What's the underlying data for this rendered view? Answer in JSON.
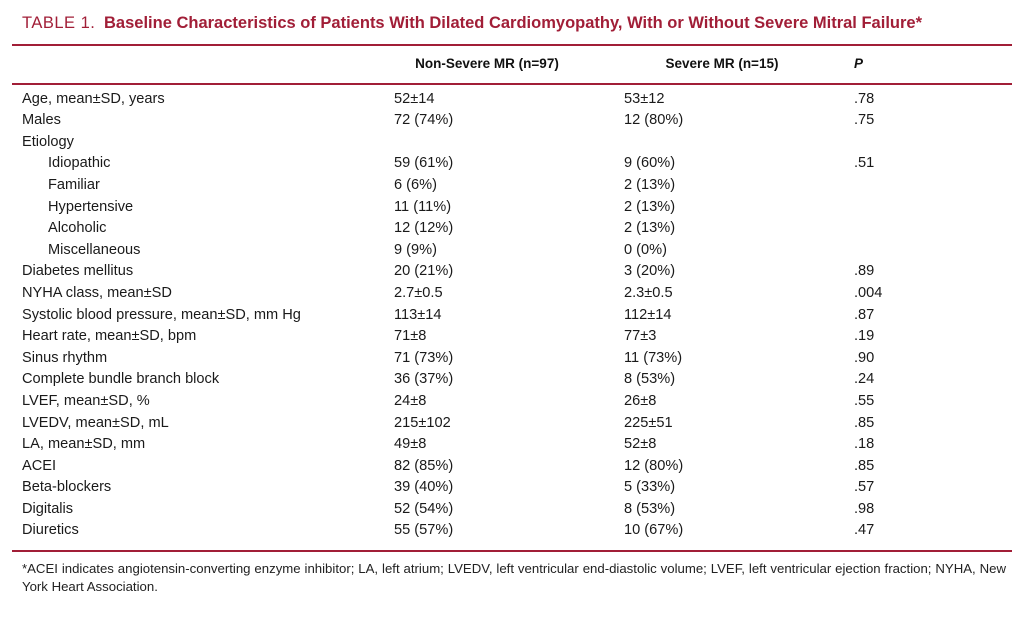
{
  "title": {
    "prefix": "TABLE 1.",
    "text": "Baseline Characteristics of Patients With Dilated Cardiomyopathy, With or Without Severe Mitral Failure*"
  },
  "colors": {
    "accent_maroon": "#a11e37",
    "body_text": "#1a1a1a"
  },
  "table": {
    "columns": [
      "Non-Severe MR (n=97)",
      "Severe MR (n=15)",
      "P"
    ],
    "rows": [
      {
        "label": "Age, mean±SD, years",
        "indent": false,
        "c1": "52±14",
        "c2": "53±12",
        "p": ".78"
      },
      {
        "label": "Males",
        "indent": false,
        "c1": "72 (74%)",
        "c2": "12 (80%)",
        "p": ".75"
      },
      {
        "label": "Etiology",
        "indent": false,
        "c1": "",
        "c2": "",
        "p": ""
      },
      {
        "label": "Idiopathic",
        "indent": true,
        "c1": "59 (61%)",
        "c2": "9 (60%)",
        "p": ".51"
      },
      {
        "label": "Familiar",
        "indent": true,
        "c1": "6 (6%)",
        "c2": "2 (13%)",
        "p": ""
      },
      {
        "label": "Hypertensive",
        "indent": true,
        "c1": "11 (11%)",
        "c2": "2 (13%)",
        "p": ""
      },
      {
        "label": "Alcoholic",
        "indent": true,
        "c1": "12 (12%)",
        "c2": "2 (13%)",
        "p": ""
      },
      {
        "label": "Miscellaneous",
        "indent": true,
        "c1": "9 (9%)",
        "c2": "0 (0%)",
        "p": ""
      },
      {
        "label": "Diabetes mellitus",
        "indent": false,
        "c1": "20 (21%)",
        "c2": "3 (20%)",
        "p": ".89"
      },
      {
        "label": "NYHA class, mean±SD",
        "indent": false,
        "c1": "2.7±0.5",
        "c2": "2.3±0.5",
        "p": ".004"
      },
      {
        "label": "Systolic blood pressure, mean±SD, mm Hg",
        "indent": false,
        "c1": "113±14",
        "c2": "112±14",
        "p": ".87"
      },
      {
        "label": "Heart rate, mean±SD, bpm",
        "indent": false,
        "c1": "71±8",
        "c2": "77±3",
        "p": ".19"
      },
      {
        "label": "Sinus rhythm",
        "indent": false,
        "c1": "71 (73%)",
        "c2": "11 (73%)",
        "p": ".90"
      },
      {
        "label": "Complete bundle branch block",
        "indent": false,
        "c1": "36 (37%)",
        "c2": "8 (53%)",
        "p": ".24"
      },
      {
        "label": "LVEF, mean±SD, %",
        "indent": false,
        "c1": "24±8",
        "c2": "26±8",
        "p": ".55"
      },
      {
        "label": "LVEDV, mean±SD, mL",
        "indent": false,
        "c1": "215±102",
        "c2": "225±51",
        "p": ".85"
      },
      {
        "label": "LA, mean±SD, mm",
        "indent": false,
        "c1": "49±8",
        "c2": "52±8",
        "p": ".18"
      },
      {
        "label": "ACEI",
        "indent": false,
        "c1": "82 (85%)",
        "c2": "12 (80%)",
        "p": ".85"
      },
      {
        "label": "Beta-blockers",
        "indent": false,
        "c1": "39 (40%)",
        "c2": "5 (33%)",
        "p": ".57"
      },
      {
        "label": "Digitalis",
        "indent": false,
        "c1": "52 (54%)",
        "c2": "8 (53%)",
        "p": ".98"
      },
      {
        "label": "Diuretics",
        "indent": false,
        "c1": "55 (57%)",
        "c2": "10 (67%)",
        "p": ".47"
      }
    ]
  },
  "footnote": "*ACEI indicates angiotensin-converting enzyme inhibitor; LA, left atrium; LVEDV, left ventricular end-diastolic volume; LVEF, left ventricular ejection fraction; NYHA, New York Heart Association."
}
